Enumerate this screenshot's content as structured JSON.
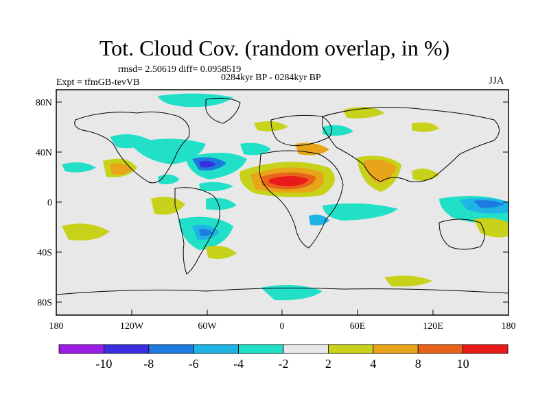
{
  "title": "Tot. Cloud Cov. (random overlap, in %)",
  "stats": "rmsd= 2.50619 diff= 0.0958519",
  "period": "0284kyr BP - 0284kyr BP",
  "experiment": "Expt = tfmGB-tevVB",
  "season": "JJA",
  "axes": {
    "lat_ticks": [
      "80N",
      "40N",
      "0",
      "40S",
      "80S"
    ],
    "lon_ticks": [
      "180",
      "120W",
      "60W",
      "0",
      "60E",
      "120E",
      "180"
    ]
  },
  "colorbar": {
    "colors": [
      "#9b1ee6",
      "#3a2ee0",
      "#1d7ae0",
      "#1fb4e6",
      "#22e0c8",
      "#e8e8e8",
      "#c8d21a",
      "#e8a51a",
      "#e8641a",
      "#e81a1a"
    ],
    "labels": [
      "-10",
      "-8",
      "-6",
      "-4",
      "-2",
      "2",
      "4",
      "8",
      "10"
    ]
  },
  "palette": {
    "background": "#e8e8e8",
    "coast": "#000000"
  }
}
